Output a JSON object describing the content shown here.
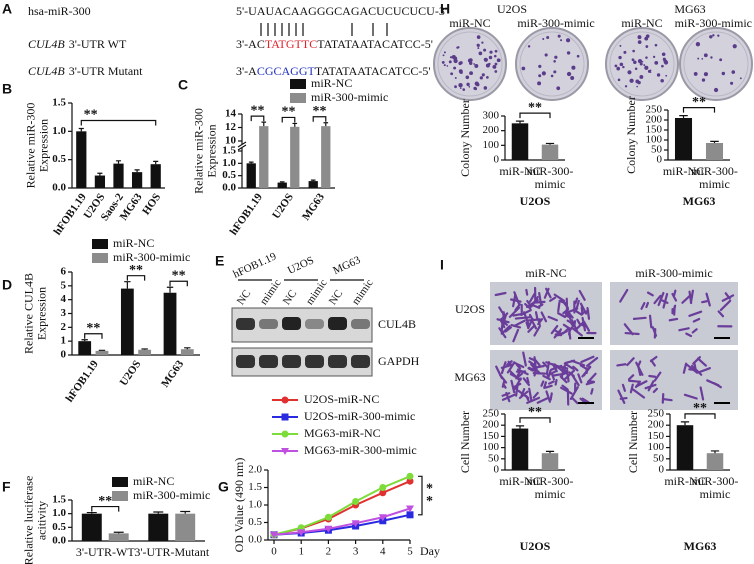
{
  "panel_a": {
    "label": "A",
    "rows": [
      {
        "name": "hsa-miR-300",
        "sequence": [
          "5'-UAUACAAGGGCAGACUCUCUCU-3'"
        ]
      },
      {
        "gene": "CUL4B",
        "name": "3'-UTR WT",
        "sequence": [
          "3'-AC",
          "TATGTTC",
          "TATATAATACATCC-5'"
        ],
        "highlight": "#e0202a"
      },
      {
        "gene": "CUL4B",
        "name": "3'-UTR Mutant",
        "sequence": [
          "3'-A",
          "CGCAGGT",
          "TATATAATACATCC-5'"
        ],
        "highlight": "#2030c0"
      }
    ]
  },
  "panel_e": {
    "label": "E",
    "groups": [
      "hFOB1.19",
      "U2OS",
      "MG63"
    ],
    "lanes": [
      "NC",
      "mimic",
      "NC",
      "mimic",
      "NC",
      "mimic"
    ],
    "proteins": [
      "CUL4B",
      "GAPDH"
    ]
  },
  "panel_h": {
    "label": "H",
    "cell_lines": [
      "U2OS",
      "MG63"
    ],
    "conditions": [
      "miR-NC",
      "miR-300-mimic",
      "miR-NC",
      "miR-300-mimic"
    ]
  },
  "panel_i": {
    "label": "I",
    "conditions": [
      "miR-NC",
      "miR-300-mimic"
    ],
    "cell_lines": [
      "U2OS",
      "MG63"
    ]
  },
  "chart_data": [
    {
      "type": "bar",
      "label": "B",
      "categories": [
        "hFOB1.19",
        "U2OS",
        "Saos-2",
        "MG63",
        "HOS"
      ],
      "values": [
        1.0,
        0.22,
        0.43,
        0.28,
        0.42
      ],
      "errors": [
        0.05,
        0.04,
        0.05,
        0.04,
        0.05
      ],
      "color": "#111111",
      "ylim": [
        0,
        1.5
      ],
      "yticks": [
        {
          "value": 0,
          "label": "0.0"
        },
        0.5,
        {
          "value": 1,
          "label": "1.0"
        },
        1.5
      ],
      "ylabel": "Relative miR-300\nExpression",
      "significance": [
        "**"
      ]
    },
    {
      "type": "bar",
      "label": "C",
      "categories": [
        "hFOB1.19",
        "U2OS",
        "MG63"
      ],
      "series": [
        {
          "name": "miR-NC",
          "color": "#111111",
          "values": [
            1.0,
            0.22,
            0.28
          ],
          "errors": [
            0.05,
            0.03,
            0.04
          ]
        },
        {
          "name": "miR-300-mimic",
          "color": "#8c8c8c",
          "values": [
            12.2,
            12.1,
            12.2
          ],
          "errors": [
            0.6,
            0.5,
            0.5
          ]
        }
      ],
      "ylim": [
        0,
        14
      ],
      "ybreak": [
        1.5,
        10
      ],
      "yticks": [
        {
          "value": 0,
          "label": "0.0"
        },
        0.5,
        {
          "value": 1,
          "label": "1.0"
        },
        1.5,
        10,
        12,
        14
      ],
      "ylabel": "Relative miR-300\nExpression",
      "significance": [
        "**",
        "**",
        "**"
      ]
    },
    {
      "type": "bar",
      "label": "D",
      "categories": [
        "hFOB1.19",
        "U2OS",
        "MG63"
      ],
      "series": [
        {
          "name": "miR-NC",
          "color": "#111111",
          "values": [
            1.0,
            4.8,
            4.5
          ],
          "errors": [
            0.1,
            0.5,
            0.4
          ]
        },
        {
          "name": "miR-300-mimic",
          "color": "#8c8c8c",
          "values": [
            0.3,
            0.38,
            0.42
          ],
          "errors": [
            0.04,
            0.06,
            0.1
          ]
        }
      ],
      "ylim": [
        0,
        6
      ],
      "yticks": [
        0,
        1,
        2,
        3,
        4,
        5,
        6
      ],
      "ylabel": "Relative CUL4B\nExpression",
      "significance": [
        "**",
        "**",
        "**"
      ]
    },
    {
      "type": "bar",
      "label": "F",
      "categories": [
        "3'-UTR-WT",
        "3'-UTR-Mutant"
      ],
      "series": [
        {
          "name": "miR-NC",
          "color": "#111111",
          "values": [
            1.0,
            1.0
          ],
          "errors": [
            0.04,
            0.06
          ]
        },
        {
          "name": "miR-300-mimic",
          "color": "#8c8c8c",
          "values": [
            0.28,
            1.0
          ],
          "errors": [
            0.04,
            0.08
          ]
        }
      ],
      "ylim": [
        0,
        1.5
      ],
      "yticks": [
        {
          "value": 0,
          "label": "0.0"
        },
        0.5,
        {
          "value": 1,
          "label": "1.0"
        },
        1.5
      ],
      "ylabel": "Relative luciferase\nacitivity",
      "significance": [
        "**"
      ]
    },
    {
      "type": "line",
      "label": "G",
      "x": [
        0,
        1,
        2,
        3,
        4,
        5
      ],
      "xlim": [
        0,
        5
      ],
      "xticks": [
        0,
        1,
        2,
        3,
        4,
        5
      ],
      "xlabel": "Day",
      "series": [
        {
          "name": "U2OS-miR-NC",
          "color": "#e03030",
          "marker": "circle",
          "values": [
            0.15,
            0.33,
            0.6,
            1.0,
            1.35,
            1.68
          ]
        },
        {
          "name": "U2OS-miR-300-mimic",
          "color": "#2a2ae0",
          "marker": "square",
          "values": [
            0.15,
            0.2,
            0.28,
            0.4,
            0.55,
            0.72
          ]
        },
        {
          "name": "MG63-miR-NC",
          "color": "#7ddc3a",
          "marker": "circle",
          "values": [
            0.15,
            0.35,
            0.65,
            1.1,
            1.5,
            1.82
          ]
        },
        {
          "name": "MG63-miR-300-mimic",
          "color": "#c050e0",
          "marker": "triangle",
          "values": [
            0.15,
            0.22,
            0.32,
            0.48,
            0.65,
            0.9
          ]
        }
      ],
      "ylim": [
        0,
        2
      ],
      "yticks": [
        {
          "value": 0,
          "label": "0.0"
        },
        0.5,
        {
          "value": 1,
          "label": "1.0"
        },
        1.5,
        {
          "value": 2,
          "label": "2.0"
        }
      ],
      "ylabel": "OD Value (490 nm)",
      "significance": [
        "*",
        "*"
      ]
    },
    {
      "type": "bar",
      "categories": [
        "miR-NC",
        "miR-300-\nmimic"
      ],
      "values": [
        250,
        105
      ],
      "errors": [
        15,
        8
      ],
      "colors": [
        "#111111",
        "#8c8c8c"
      ],
      "ylim": [
        0,
        300
      ],
      "yticks": [
        0,
        100,
        200,
        300
      ],
      "ylabel": "Colony Number",
      "xlabel": "U2OS",
      "significance": [
        "**"
      ]
    },
    {
      "type": "bar",
      "categories": [
        "miR-NC",
        "miR-300-\nmimic"
      ],
      "values": [
        210,
        85
      ],
      "errors": [
        12,
        8
      ],
      "colors": [
        "#111111",
        "#8c8c8c"
      ],
      "ylim": [
        0,
        250
      ],
      "yticks": [
        0,
        50,
        100,
        150,
        200,
        250
      ],
      "ylabel": "Colony Number",
      "xlabel": "MG63",
      "significance": [
        "**"
      ]
    },
    {
      "type": "bar",
      "categories": [
        "miR-NC",
        "miR-300-\nmimic"
      ],
      "values": [
        185,
        75
      ],
      "errors": [
        12,
        8
      ],
      "colors": [
        "#111111",
        "#8c8c8c"
      ],
      "ylim": [
        0,
        250
      ],
      "yticks": [
        0,
        50,
        100,
        150,
        200,
        250
      ],
      "ylabel": "Cell Number",
      "xlabel": "U2OS",
      "significance": [
        "**"
      ]
    },
    {
      "type": "bar",
      "categories": [
        "miR-NC",
        "miR-300-\nmimic"
      ],
      "values": [
        200,
        75
      ],
      "errors": [
        15,
        10
      ],
      "colors": [
        "#111111",
        "#8c8c8c"
      ],
      "ylim": [
        0,
        250
      ],
      "yticks": [
        0,
        50,
        100,
        150,
        200,
        250
      ],
      "ylabel": "Cell Number",
      "xlabel": "MG63",
      "significance": [
        "**"
      ]
    }
  ]
}
